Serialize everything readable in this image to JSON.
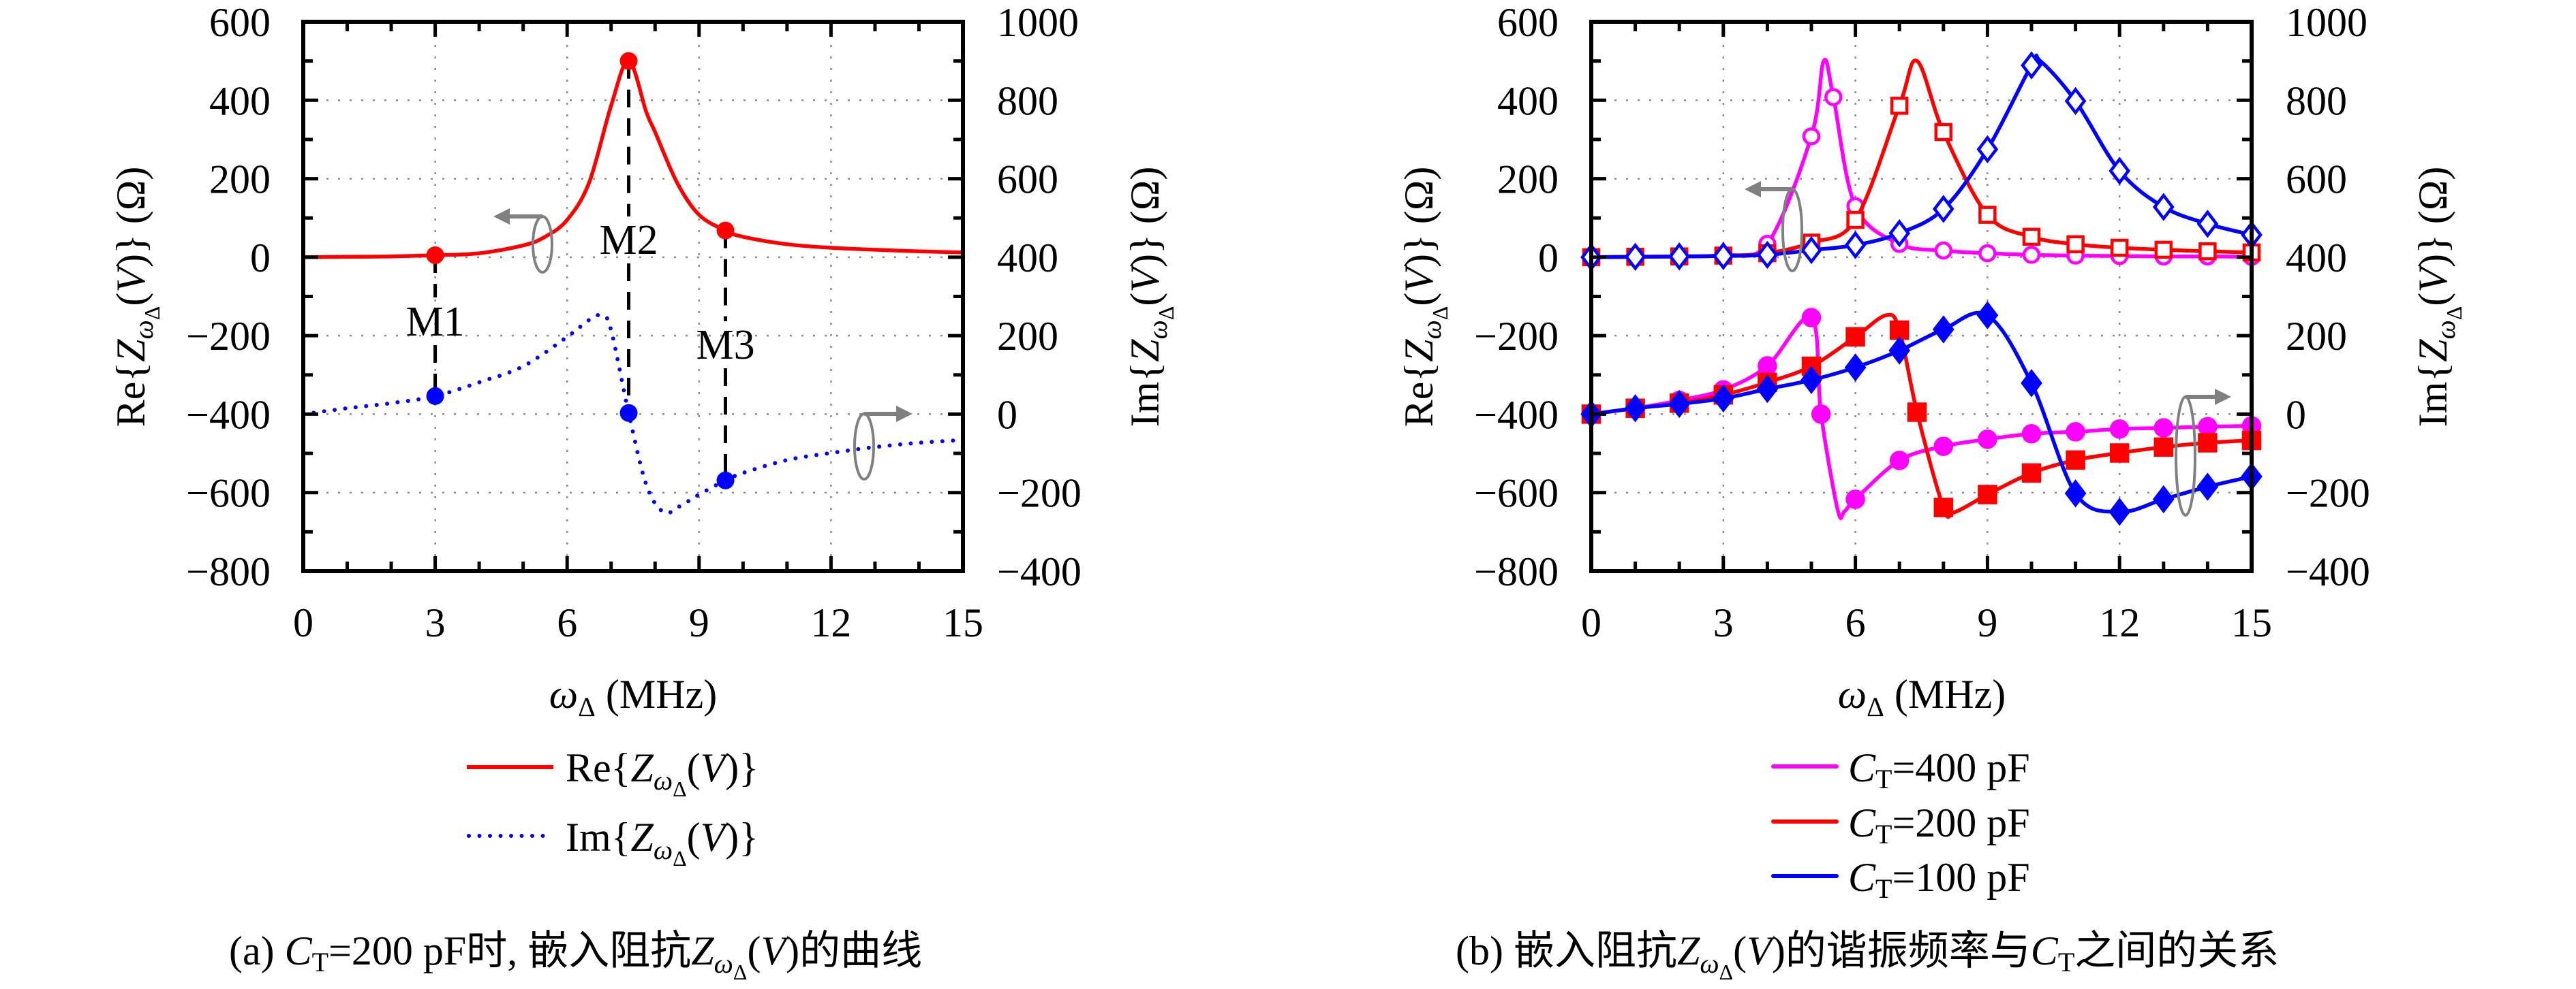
{
  "figure": {
    "caption_a": {
      "label": "(a) ",
      "C": "C",
      "C_sub": "T",
      "text1": "=200 pF时, 嵌入阻抗",
      "Z": "Z",
      "Z_sub": "ω",
      "Z_subsub": "Δ",
      "text2": "(",
      "V": "V",
      "text3": ")的曲线"
    },
    "caption_b": {
      "label": "(b) 嵌入阻抗",
      "Z": "Z",
      "Z_sub": "ω",
      "Z_subsub": "Δ",
      "text1": "(",
      "V": "V",
      "text2": ")的谐振频率与",
      "C": "C",
      "C_sub": "T",
      "text3": "之间的关系"
    }
  },
  "colors": {
    "red": "#ff0000",
    "blue": "#0000ff",
    "magenta": "#ff00ff",
    "gray": "#808080",
    "grid": "#8c8c8c",
    "axis": "#000000"
  },
  "chart_data": [
    {
      "id": "a",
      "type": "line",
      "title": "",
      "xlabel": {
        "omega": "ω",
        "sub": "Δ",
        "unit": " (MHz)"
      },
      "ylabel_left": {
        "prefix": "Re{",
        "Z": "Z",
        "sub": "ω",
        "subsub": "Δ",
        "open": "(",
        "V": "V",
        "suffix": ")} (Ω)"
      },
      "ylabel_right": {
        "prefix": "Im{",
        "Z": "Z",
        "sub": "ω",
        "subsub": "Δ",
        "open": "(",
        "V": "V",
        "suffix": ")} (Ω)"
      },
      "xlim": [
        0,
        15
      ],
      "ylim_left": [
        -800,
        600
      ],
      "ylim_right": [
        -400,
        1000
      ],
      "xticks": [
        0,
        3,
        6,
        9,
        12,
        15
      ],
      "yticks_left": [
        -800,
        -600,
        -400,
        -200,
        0,
        200,
        400,
        600
      ],
      "yticks_right": [
        -400,
        -200,
        0,
        200,
        400,
        600,
        800,
        1000
      ],
      "xtick_labels": [
        "0",
        "3",
        "6",
        "9",
        "12",
        "15"
      ],
      "yticks_left_labels": [
        "−800",
        "−600",
        "−400",
        "−200",
        "0",
        "200",
        "400",
        "600"
      ],
      "yticks_right_labels": [
        "−400",
        "−200",
        "0",
        "200",
        "400",
        "600",
        "800",
        "1000"
      ],
      "grid": true,
      "legend_position": "below",
      "series": [
        {
          "name": "Re{Z_ωΔ(V)}",
          "axis": "left",
          "color": "#ff0000",
          "style": "solid",
          "curve": {
            "x": [
              0,
              1,
              2,
              3,
              4,
              5,
              5.5,
              6,
              6.5,
              7,
              7.4,
              7.8,
              8,
              8.5,
              9,
              9.6,
              10,
              11,
              12,
              13,
              14,
              15
            ],
            "y": [
              0,
              1,
              2,
              5,
              10,
              30,
              52,
              95,
              190,
              386,
              500,
              370,
              319,
              190,
              108,
              68,
              52,
              33,
              24,
              19,
              15,
              12
            ]
          }
        },
        {
          "name": "Im{Z_ωΔ(V)}",
          "axis": "right",
          "color": "#0000ff",
          "style": "dotted",
          "curve": {
            "x": [
              0,
              1,
              2,
              3,
              4,
              5,
              6,
              6.5,
              6.8,
              7,
              7.4,
              7.8,
              8.2,
              8.6,
              9,
              9.6,
              10,
              11,
              12,
              13,
              14,
              15
            ],
            "y": [
              0,
              15,
              28,
              46,
              81,
              122,
              197,
              240,
              252,
              214,
              3,
              -180,
              -250,
              -232,
              -205,
              -169,
              -150,
              -117,
              -99,
              -84,
              -73,
              -66
            ]
          }
        }
      ],
      "markers": [
        {
          "label": "M1",
          "x": 3,
          "re": 5,
          "im": 46
        },
        {
          "label": "M2",
          "x": 7.4,
          "re": 500,
          "im": 3
        },
        {
          "label": "M3",
          "x": 9.6,
          "re": 68,
          "im": -169
        }
      ],
      "legend": [
        {
          "prefix": "Re{",
          "Z": "Z",
          "sub": "ω",
          "subsub": "Δ",
          "open": "(",
          "V": "V",
          "suffix": ")}",
          "color": "#ff0000",
          "style": "solid"
        },
        {
          "prefix": "Im{",
          "Z": "Z",
          "sub": "ω",
          "subsub": "Δ",
          "open": "(",
          "V": "V",
          "suffix": ")}",
          "color": "#0000ff",
          "style": "dotted"
        }
      ]
    },
    {
      "id": "b",
      "type": "line",
      "title": "",
      "xlabel": {
        "omega": "ω",
        "sub": "Δ",
        "unit": " (MHz)"
      },
      "ylabel_left": {
        "prefix": "Re{",
        "Z": "Z",
        "sub": "ω",
        "subsub": "Δ",
        "open": "(",
        "V": "V",
        "suffix": ")} (Ω)"
      },
      "ylabel_right": {
        "prefix": "Im{",
        "Z": "Z",
        "sub": "ω",
        "subsub": "Δ",
        "open": "(",
        "V": "V",
        "suffix": ")} (Ω)"
      },
      "xlim": [
        0,
        15
      ],
      "ylim_left": [
        -800,
        600
      ],
      "ylim_right": [
        -400,
        1000
      ],
      "xticks": [
        0,
        3,
        6,
        9,
        12,
        15
      ],
      "yticks_left": [
        -800,
        -600,
        -400,
        -200,
        0,
        200,
        400,
        600
      ],
      "yticks_right": [
        -400,
        -200,
        0,
        200,
        400,
        600,
        800,
        1000
      ],
      "xtick_labels": [
        "0",
        "3",
        "6",
        "9",
        "12",
        "15"
      ],
      "yticks_left_labels": [
        "−800",
        "−600",
        "−400",
        "−200",
        "0",
        "200",
        "400",
        "600"
      ],
      "yticks_right_labels": [
        "−400",
        "−200",
        "0",
        "200",
        "400",
        "600",
        "800",
        "1000"
      ],
      "grid": true,
      "legend_position": "below",
      "series": [
        {
          "name": "C_T=400 pF Re",
          "axis": "left",
          "color": "#ff00ff",
          "marker": "circle-open",
          "x": [
            0,
            1,
            2,
            3,
            4,
            5,
            5.5,
            6,
            7,
            8,
            9,
            10,
            11,
            12,
            13,
            14,
            15
          ],
          "y": [
            0,
            1,
            2,
            6,
            34,
            308,
            408,
            130,
            34,
            17,
            10,
            6,
            4,
            3,
            2,
            2,
            1
          ],
          "curve_extra": {
            "x": [
              5.28
            ],
            "y": [
              500
            ]
          }
        },
        {
          "name": "C_T=200 pF Re",
          "axis": "left",
          "color": "#ff0000",
          "marker": "square-open",
          "x": [
            0,
            1,
            2,
            3,
            4,
            5,
            6,
            7,
            8,
            9,
            10,
            11,
            12,
            13,
            14,
            15
          ],
          "y": [
            0,
            1,
            2,
            4,
            10,
            37,
            95,
            386,
            319,
            108,
            52,
            33,
            24,
            19,
            15,
            12
          ],
          "curve_extra": {
            "x": [
              7.4
            ],
            "y": [
              500
            ]
          }
        },
        {
          "name": "C_T=100 pF Re",
          "axis": "left",
          "color": "#0000ff",
          "marker": "diamond-open",
          "x": [
            0,
            1,
            2,
            3,
            4,
            5,
            6,
            7,
            8,
            9,
            10,
            11,
            12,
            13,
            14,
            15
          ],
          "y": [
            0,
            1,
            2,
            3,
            6,
            18,
            31,
            61,
            123,
            275,
            489,
            398,
            220,
            128,
            85,
            57
          ],
          "curve_extra": {
            "x": [
              10.2
            ],
            "y": [
              500
            ]
          }
        },
        {
          "name": "C_T=400 pF Im",
          "axis": "right",
          "color": "#ff00ff",
          "marker": "circle-filled",
          "x": [
            0,
            1,
            2,
            3,
            4,
            5,
            5.22,
            6,
            7,
            8,
            9,
            10,
            11,
            12,
            13,
            14,
            15
          ],
          "y": [
            0,
            15,
            35,
            62,
            123,
            246,
            0,
            -217,
            -118,
            -82,
            -64,
            -50,
            -45,
            -38,
            -35,
            -32,
            -30
          ],
          "curve_extra": {
            "x": [
              5.6,
              5.75
            ],
            "y": [
              -245,
              -248
            ]
          }
        },
        {
          "name": "C_T=200 pF Im",
          "axis": "right",
          "color": "#ff0000",
          "marker": "square-filled",
          "x": [
            0,
            1,
            2,
            3,
            4,
            5,
            6,
            7,
            7.4,
            8,
            9,
            10,
            11,
            12,
            13,
            14,
            15
          ],
          "y": [
            0,
            15,
            28,
            49,
            81,
            122,
            197,
            214,
            5,
            -238,
            -205,
            -150,
            -117,
            -99,
            -84,
            -73,
            -67
          ],
          "curve_extra": {
            "x": [
              6.7,
              8.25
            ],
            "y": [
              252,
              -250
            ]
          }
        },
        {
          "name": "C_T=100 pF Im",
          "axis": "right",
          "color": "#0000ff",
          "marker": "diamond-filled",
          "x": [
            0,
            1,
            2,
            3,
            4,
            5,
            6,
            7,
            8,
            9,
            10,
            11,
            12,
            13,
            14,
            15
          ],
          "y": [
            0,
            15,
            26,
            40,
            64,
            87,
            119,
            162,
            216,
            252,
            79,
            -202,
            -249,
            -217,
            -185,
            -159
          ],
          "curve_extra": {
            "x": [],
            "y": []
          }
        }
      ],
      "legend": [
        {
          "C": "C",
          "sub": "T",
          "rest": "=400 pF",
          "color": "#ff00ff"
        },
        {
          "C": "C",
          "sub": "T",
          "rest": "=200 pF",
          "color": "#ff0000"
        },
        {
          "C": "C",
          "sub": "T",
          "rest": "=100 pF",
          "color": "#0000ff"
        }
      ]
    }
  ]
}
